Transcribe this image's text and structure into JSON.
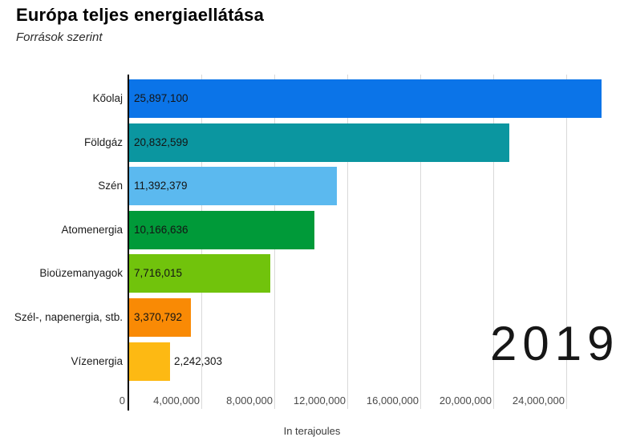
{
  "header": {
    "title": "Európa teljes energiaellátása",
    "subtitle": "Források szerint"
  },
  "chart_data": {
    "type": "bar",
    "orientation": "horizontal",
    "title": "Európa teljes energiaellátása",
    "subtitle": "Források szerint",
    "categories": [
      "Kőolaj",
      "Földgáz",
      "Szén",
      "Atomenergia",
      "Bioüzemanyagok",
      "Szél-, napenergia, stb.",
      "Vízenergia"
    ],
    "values": [
      25897100,
      20832599,
      11392379,
      10166636,
      7716015,
      3370792,
      2242303
    ],
    "value_labels": [
      "25,897,100",
      "20,832,599",
      "11,392,379",
      "10,166,636",
      "7,716,015",
      "3,370,792",
      "2,242,303"
    ],
    "bar_colors": [
      "#0b74e8",
      "#0b96a0",
      "#5bb9ef",
      "#009a39",
      "#71c30c",
      "#f98a05",
      "#fdb913"
    ],
    "x_axis": {
      "label": "In terajoules",
      "ticks": [
        0,
        4000000,
        8000000,
        12000000,
        16000000,
        20000000,
        24000000
      ],
      "tick_labels": [
        "0",
        "4,000,000",
        "8,000,000",
        "12,000,000",
        "16,000,000",
        "20,000,000",
        "24,000,000"
      ],
      "range": [
        0,
        27160000
      ]
    },
    "grid": true,
    "gridline_color": "#d9d9d9",
    "axis_line_color": "#000000",
    "annotation_year": "2019",
    "legend": "none"
  }
}
